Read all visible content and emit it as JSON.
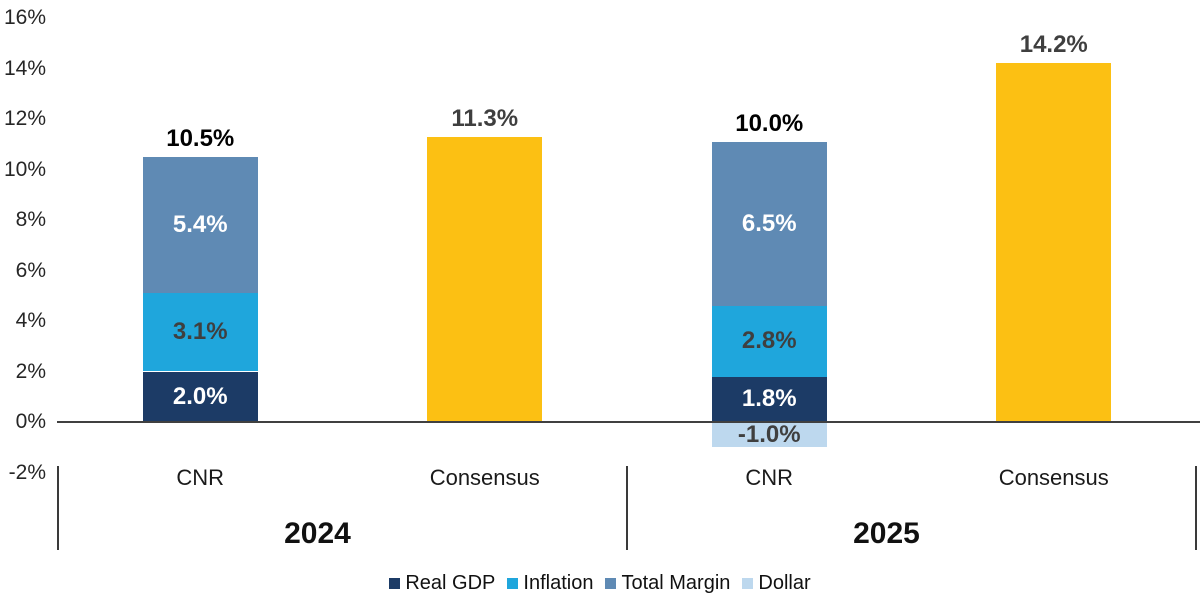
{
  "chart_data": {
    "type": "bar",
    "stacked": true,
    "title": "",
    "background": "#FFFFFF",
    "axis_color": "#404040",
    "y_axis": {
      "min": -2,
      "max": 16,
      "step": 2,
      "ticks": [
        "16%",
        "14%",
        "12%",
        "10%",
        "8%",
        "6%",
        "4%",
        "2%",
        "0%",
        "-2%"
      ]
    },
    "series": [
      {
        "name": "Real GDP",
        "color": "#1C3B66",
        "label_color": "#FFFFFF"
      },
      {
        "name": "Inflation",
        "color": "#1FA6DC",
        "label_color": "#3F3F3F"
      },
      {
        "name": "Total Margin",
        "color": "#5F8AB4",
        "label_color": "#FFFFFF"
      },
      {
        "name": "Dollar",
        "color": "#BDD8EE",
        "label_color": "#3F3F3F"
      }
    ],
    "consensus_color": "#FCC013",
    "groups": [
      {
        "label": "2024",
        "bars": [
          {
            "category": "CNR",
            "total_label": "10.5%",
            "total_label_color": "#000000",
            "segments": [
              {
                "series": "Real GDP",
                "value": 2.0,
                "label": "2.0%"
              },
              {
                "series": "Inflation",
                "value": 3.1,
                "label": "3.1%"
              },
              {
                "series": "Total Margin",
                "value": 5.4,
                "label": "5.4%"
              }
            ]
          },
          {
            "category": "Consensus",
            "total_label": "11.3%",
            "total_label_color": "#3F3F3F",
            "value": 11.3
          }
        ]
      },
      {
        "label": "2025",
        "bars": [
          {
            "category": "CNR",
            "total_label": "10.0%",
            "total_label_color": "#000000",
            "segments": [
              {
                "series": "Real GDP",
                "value": 1.8,
                "label": "1.8%"
              },
              {
                "series": "Inflation",
                "value": 2.8,
                "label": "2.8%"
              },
              {
                "series": "Total Margin",
                "value": 6.5,
                "label": "6.5%"
              },
              {
                "series": "Dollar",
                "value": -1.0,
                "label": "-1.0%"
              }
            ]
          },
          {
            "category": "Consensus",
            "total_label": "14.2%",
            "total_label_color": "#3F3F3F",
            "value": 14.2
          }
        ]
      }
    ],
    "legend": {
      "position": "bottom",
      "items": [
        "Real GDP",
        "Inflation",
        "Total Margin",
        "Dollar"
      ]
    }
  }
}
